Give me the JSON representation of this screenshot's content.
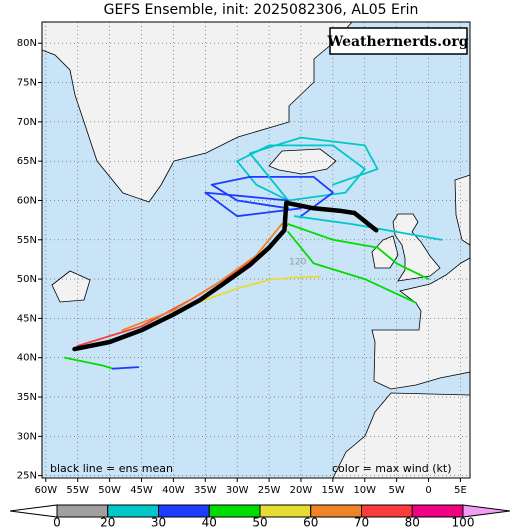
{
  "chart_data": {
    "type": "track_map",
    "title": "GEFS Ensemble, init: 2025082306, AL05 Erin",
    "watermark": "Weathernerds.org",
    "mean_note": "black line = ens mean",
    "color_note": "color = max wind (kt)",
    "xlim": [
      -60.6,
      6.5
    ],
    "ylim": [
      24.7,
      82.7
    ],
    "xticks": [
      {
        "value": -60,
        "label": "60W"
      },
      {
        "value": -55,
        "label": "55W"
      },
      {
        "value": -50,
        "label": "50W"
      },
      {
        "value": -45,
        "label": "45W"
      },
      {
        "value": -40,
        "label": "40W"
      },
      {
        "value": -35,
        "label": "35W"
      },
      {
        "value": -30,
        "label": "30W"
      },
      {
        "value": -25,
        "label": "25W"
      },
      {
        "value": -20,
        "label": "20W"
      },
      {
        "value": -15,
        "label": "15W"
      },
      {
        "value": -10,
        "label": "10W"
      },
      {
        "value": -5,
        "label": "5W"
      },
      {
        "value": 0,
        "label": "0"
      },
      {
        "value": 5,
        "label": "5E"
      }
    ],
    "yticks": [
      {
        "value": 25,
        "label": "25N"
      },
      {
        "value": 30,
        "label": "30N"
      },
      {
        "value": 35,
        "label": "35N"
      },
      {
        "value": 40,
        "label": "40N"
      },
      {
        "value": 45,
        "label": "45N"
      },
      {
        "value": 50,
        "label": "50N"
      },
      {
        "value": 55,
        "label": "55N"
      },
      {
        "value": 60,
        "label": "60N"
      },
      {
        "value": 65,
        "label": "65N"
      },
      {
        "value": 70,
        "label": "70N"
      },
      {
        "value": 75,
        "label": "75N"
      },
      {
        "value": 80,
        "label": "80N"
      }
    ],
    "grid": true,
    "colorbar": {
      "levels": [
        0,
        20,
        30,
        40,
        50,
        60,
        70,
        80,
        100
      ],
      "colors": [
        "#ffffff",
        "#a0a0a0",
        "#00c8c8",
        "#1e3cff",
        "#00dc00",
        "#e6dc32",
        "#f08228",
        "#fa3c3c",
        "#f00082",
        "#f0a0f0"
      ]
    },
    "mean_track": {
      "color": "#000000",
      "lon": [
        -55.5,
        -50,
        -45,
        -40,
        -35.9,
        -32,
        -28,
        -25,
        -22.6,
        -22.3,
        -18,
        -14,
        -11.6,
        -8.2
      ],
      "lat": [
        41.1,
        42,
        43.5,
        45.5,
        47.3,
        49.5,
        51.8,
        54,
        56.2,
        59.7,
        59,
        58.7,
        58.4,
        56.2
      ]
    },
    "members": [
      {
        "color": "#e6dc32",
        "lon": [
          -38,
          -30,
          -25,
          -21,
          -17
        ],
        "lat": [
          46.5,
          48.8,
          49.9,
          50.2,
          50.3
        ]
      },
      {
        "color": "#fa3c3c",
        "lon": [
          -55,
          -45,
          -37,
          -30,
          -25,
          -22
        ],
        "lat": [
          41.5,
          44,
          47.5,
          51,
          54,
          57
        ]
      },
      {
        "color": "#f08228",
        "lon": [
          -48,
          -40,
          -33,
          -27,
          -23
        ],
        "lat": [
          43.5,
          46,
          49.5,
          53,
          57
        ]
      },
      {
        "color": "#00dc00",
        "lon": [
          -57,
          -51,
          -49.5
        ],
        "lat": [
          40,
          39,
          38.6
        ]
      },
      {
        "color": "#1e3cff",
        "lon": [
          -49.5,
          -45.5
        ],
        "lat": [
          38.6,
          38.8
        ]
      },
      {
        "color": "#00c8c8",
        "lon": [
          -22,
          -27,
          -30,
          -25,
          -15,
          -10,
          -13,
          -22
        ],
        "lat": [
          60,
          62,
          65,
          67,
          67,
          64,
          61,
          60
        ]
      },
      {
        "color": "#1e3cff",
        "lon": [
          -22,
          -30,
          -34,
          -28,
          -18,
          -15,
          -20
        ],
        "lat": [
          59,
          60,
          62,
          63,
          63,
          61,
          58
        ]
      },
      {
        "color": "#00c8c8",
        "lon": [
          -22,
          -28,
          -20,
          -10,
          -8,
          -15
        ],
        "lat": [
          60,
          66,
          68,
          67,
          64,
          62
        ]
      },
      {
        "color": "#1e3cff",
        "lon": [
          -22,
          -35,
          -30,
          -20
        ],
        "lat": [
          60,
          61,
          58,
          59
        ]
      },
      {
        "color": "#00dc00",
        "lon": [
          -22,
          -15,
          -8,
          -5,
          0
        ],
        "lat": [
          57,
          55,
          54,
          52,
          50
        ]
      },
      {
        "color": "#00c8c8",
        "lon": [
          -21,
          -12,
          -5,
          2
        ],
        "lat": [
          58,
          57,
          56,
          55
        ]
      },
      {
        "color": "#00dc00",
        "lon": [
          -22,
          -18,
          -10,
          -2
        ],
        "lat": [
          56,
          52,
          50,
          47
        ]
      }
    ],
    "annotations": [
      {
        "text": "120",
        "lon": -20.5,
        "lat": 52.2
      }
    ]
  }
}
